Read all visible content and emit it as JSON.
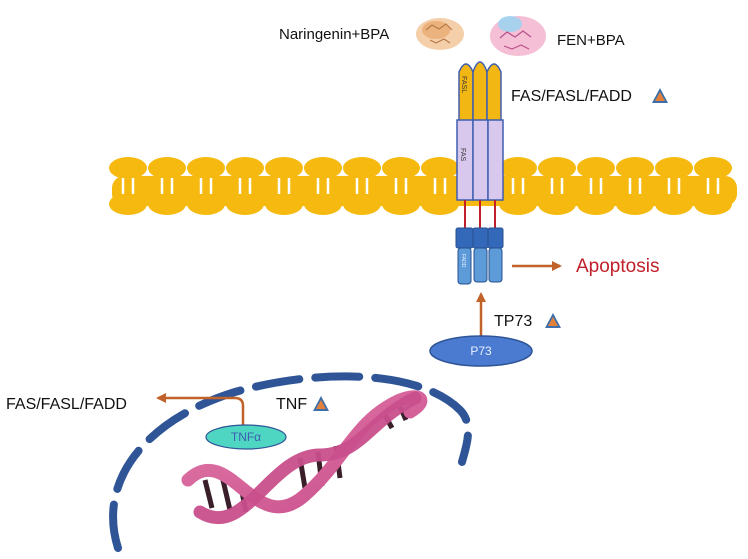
{
  "molecules": {
    "left_label": "Naringenin+BPA",
    "right_label": "FEN+BPA"
  },
  "receptor": {
    "fasl_tag": "FASL",
    "fas_tag": "FAS",
    "fadd_tag": "FADD",
    "label": "FAS/FASL/FADD"
  },
  "outcome": {
    "label": "Apoptosis"
  },
  "p73": {
    "node_label": "P73",
    "gene_label": "TP73"
  },
  "tnf": {
    "node_label": "TNFα",
    "gene_label": "TNF",
    "target_label": "FAS/FASL/FADD"
  },
  "colors": {
    "membrane": "#f5b90f",
    "fasl": "#f3b714",
    "fas": "#d8c8ee",
    "fadd": "#3c78c4",
    "p73": "#4a7bd0",
    "tnf": "#4fd6c3",
    "arrow": "#c0622a",
    "nucleus": "#2f5597",
    "dna": "#d95f9b",
    "apoptosis": "#c0202a"
  }
}
